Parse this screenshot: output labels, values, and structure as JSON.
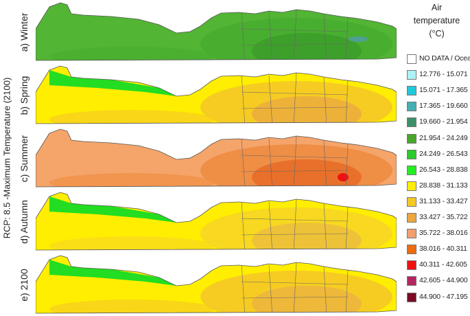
{
  "figure": {
    "y_title": "RCP: 8.5 -Maximum Temperature (2100)",
    "panels": [
      {
        "label": "a) Winter",
        "palette": [
          "#52b534",
          "#48ae2f",
          "#3da02a"
        ],
        "accent": "#4f9f93"
      },
      {
        "label": "b) Spring",
        "palette": [
          "#ffee00",
          "#f6cc22",
          "#edb13a"
        ],
        "accent": "#22dd22"
      },
      {
        "label": "c) Summer",
        "palette": [
          "#f5a46a",
          "#ef8e45",
          "#e8702b"
        ],
        "accent": "#ee1111"
      },
      {
        "label": "d) Autumn",
        "palette": [
          "#ffee00",
          "#f8d820",
          "#eec238"
        ],
        "accent": "#22dd22"
      },
      {
        "label": "e) 2100",
        "palette": [
          "#ffee00",
          "#f6cc22",
          "#eeb83a"
        ],
        "accent": "#22dd22"
      }
    ]
  },
  "legend": {
    "title_lines": [
      "Air",
      "temperature",
      "(°C)"
    ],
    "items": [
      {
        "label": "NO DATA / Ocean",
        "color": "#ffffff"
      },
      {
        "label": "12.776  -  15.071",
        "color": "#aef2f5"
      },
      {
        "label": "15.071  -  17.365",
        "color": "#1ecadc"
      },
      {
        "label": "17.365  -  19.660",
        "color": "#44b0b4"
      },
      {
        "label": "19.660  -  21.954",
        "color": "#3d8f6a"
      },
      {
        "label": "21.954  -  24.249",
        "color": "#4aa62a"
      },
      {
        "label": "24.249  -  26.543",
        "color": "#2bcc2b"
      },
      {
        "label": "26.543  -  28.838",
        "color": "#22ee22"
      },
      {
        "label": "28.838  -  31.133",
        "color": "#ffee00"
      },
      {
        "label": "31.133  -  33.427",
        "color": "#f4c826"
      },
      {
        "label": "33.427  -  35.722",
        "color": "#eca73f"
      },
      {
        "label": "35.722  -  38.016",
        "color": "#f3a071"
      },
      {
        "label": "38.016  -  40.311",
        "color": "#ef6b10"
      },
      {
        "label": "40.311  -  42.605",
        "color": "#ee1111"
      },
      {
        "label": "42.605  -  44.900",
        "color": "#b3275e"
      },
      {
        "label": "44.900  -  47.195",
        "color": "#7b0b25"
      }
    ]
  }
}
